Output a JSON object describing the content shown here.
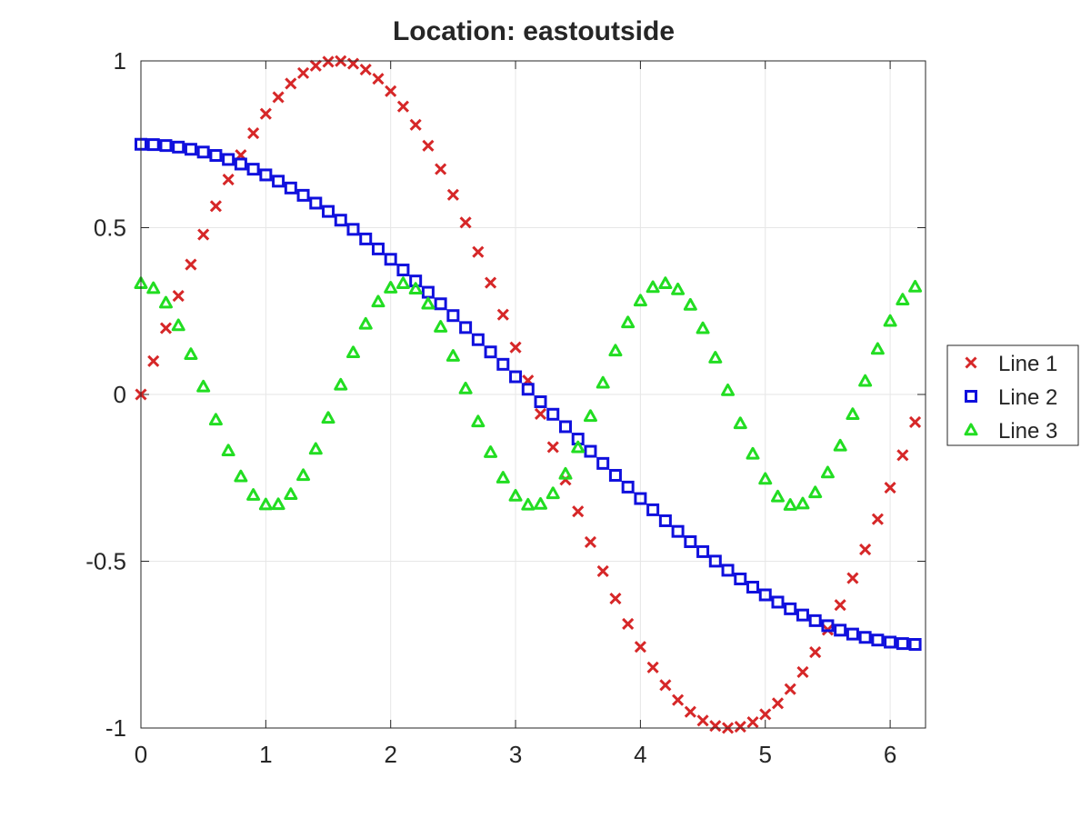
{
  "chart_data": {
    "type": "scatter",
    "title": "Location: eastoutside",
    "xlabel": "",
    "ylabel": "",
    "xlim": [
      0,
      6.2832
    ],
    "ylim": [
      -1,
      1
    ],
    "xticks": [
      0,
      1,
      2,
      3,
      4,
      5,
      6
    ],
    "xtick_labels": [
      "0",
      "1",
      "2",
      "3",
      "4",
      "5",
      "6"
    ],
    "yticks": [
      -1,
      -0.5,
      0,
      0.5,
      1
    ],
    "ytick_labels": [
      "-1",
      "-0.5",
      "0",
      "0.5",
      "1"
    ],
    "grid": true,
    "legend_position": "east outside",
    "x": {
      "start": 0,
      "step": 0.1,
      "count": 63
    },
    "series": [
      {
        "name": "Line 1",
        "marker": "x",
        "color": "#d62728",
        "function": "sin(x)"
      },
      {
        "name": "Line 2",
        "marker": "square",
        "color": "#1010dd",
        "function": "0.75*cos(x/2)"
      },
      {
        "name": "Line 3",
        "marker": "triangle",
        "color": "#22dd22",
        "function": "cos(3x)/3"
      }
    ]
  }
}
